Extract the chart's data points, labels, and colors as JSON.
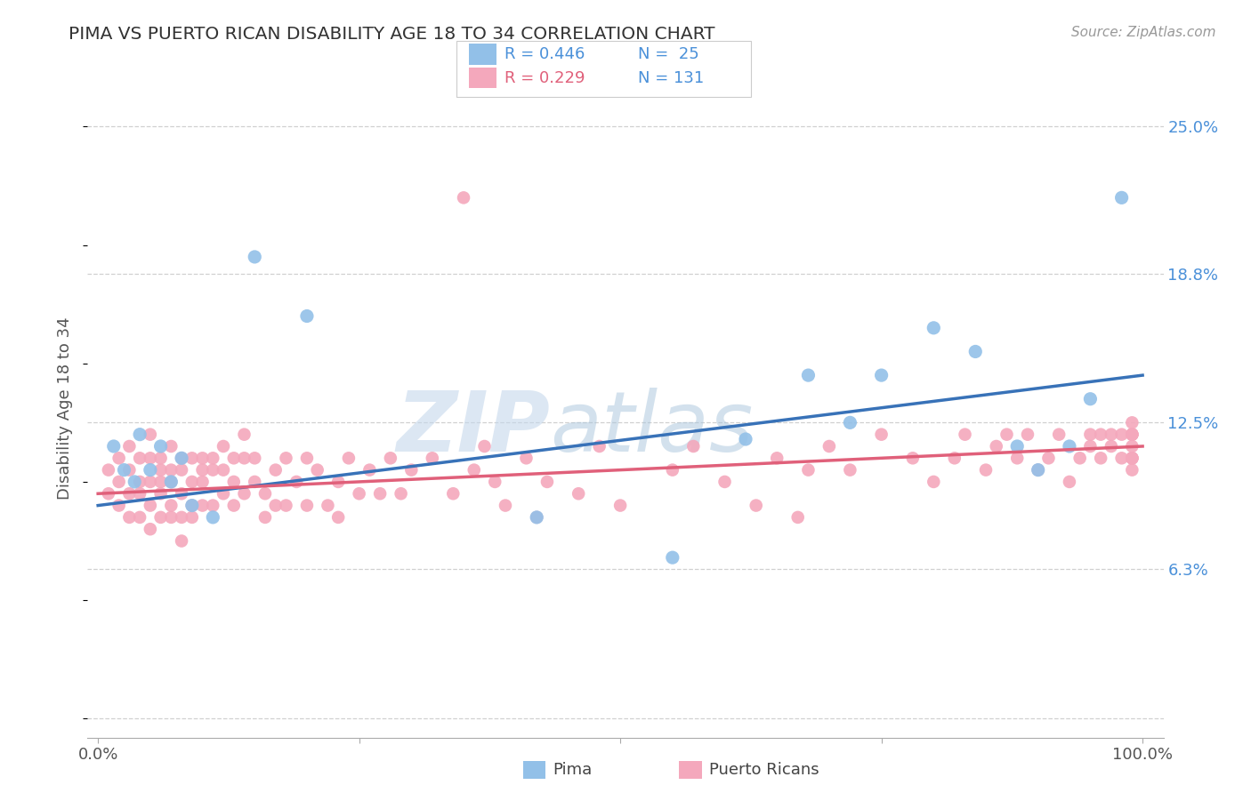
{
  "title": "PIMA VS PUERTO RICAN DISABILITY AGE 18 TO 34 CORRELATION CHART",
  "ylabel": "Disability Age 18 to 34",
  "source": "Source: ZipAtlas.com",
  "pima_R": "0.446",
  "pima_N": "25",
  "pr_R": "0.229",
  "pr_N": "131",
  "xlim": [
    0,
    100
  ],
  "yticks": [
    0.0,
    6.3,
    12.5,
    18.8,
    25.0
  ],
  "yticklabels": [
    "",
    "6.3%",
    "12.5%",
    "18.8%",
    "25.0%"
  ],
  "pima_color": "#92c0e8",
  "pima_line_color": "#3872b8",
  "pr_color": "#f4a8bc",
  "pr_line_color": "#e0607a",
  "pima_x": [
    1.5,
    2.5,
    3.5,
    4.0,
    5.0,
    6.0,
    7.0,
    8.0,
    9.0,
    11.0,
    15.0,
    20.0,
    42.0,
    55.0,
    62.0,
    68.0,
    72.0,
    75.0,
    80.0,
    84.0,
    88.0,
    90.0,
    93.0,
    95.0,
    98.0
  ],
  "pima_y": [
    11.5,
    10.5,
    10.0,
    12.0,
    10.5,
    11.5,
    10.0,
    11.0,
    9.0,
    8.5,
    19.5,
    17.0,
    8.5,
    6.8,
    11.8,
    14.5,
    12.5,
    14.5,
    16.5,
    15.5,
    11.5,
    10.5,
    11.5,
    13.5,
    22.0
  ],
  "pr_x": [
    1,
    1,
    2,
    2,
    2,
    3,
    3,
    3,
    3,
    4,
    4,
    4,
    4,
    5,
    5,
    5,
    5,
    5,
    6,
    6,
    6,
    6,
    6,
    7,
    7,
    7,
    7,
    7,
    8,
    8,
    8,
    8,
    8,
    9,
    9,
    9,
    9,
    10,
    10,
    10,
    10,
    11,
    11,
    11,
    12,
    12,
    12,
    13,
    13,
    13,
    14,
    14,
    14,
    15,
    15,
    16,
    16,
    17,
    17,
    18,
    18,
    19,
    20,
    20,
    21,
    22,
    23,
    23,
    24,
    25,
    26,
    27,
    28,
    29,
    30,
    32,
    34,
    35,
    36,
    37,
    38,
    39,
    41,
    42,
    43,
    46,
    48,
    50,
    55,
    57,
    60,
    63,
    65,
    67,
    68,
    70,
    72,
    75,
    78,
    80,
    82,
    83,
    85,
    86,
    87,
    88,
    89,
    90,
    91,
    92,
    93,
    94,
    95,
    95,
    96,
    96,
    97,
    97,
    98,
    98,
    99,
    99,
    99,
    99,
    99,
    99,
    99,
    99,
    99,
    99,
    99
  ],
  "pr_y": [
    9.5,
    10.5,
    9.0,
    10.0,
    11.0,
    8.5,
    9.5,
    10.5,
    11.5,
    8.5,
    9.5,
    10.0,
    11.0,
    8.0,
    9.0,
    10.0,
    11.0,
    12.0,
    8.5,
    9.5,
    10.0,
    10.5,
    11.0,
    8.5,
    9.0,
    10.0,
    10.5,
    11.5,
    7.5,
    8.5,
    9.5,
    10.5,
    11.0,
    8.5,
    9.0,
    10.0,
    11.0,
    9.0,
    10.0,
    10.5,
    11.0,
    9.0,
    10.5,
    11.0,
    9.5,
    10.5,
    11.5,
    9.0,
    10.0,
    11.0,
    9.5,
    11.0,
    12.0,
    10.0,
    11.0,
    8.5,
    9.5,
    9.0,
    10.5,
    9.0,
    11.0,
    10.0,
    9.0,
    11.0,
    10.5,
    9.0,
    8.5,
    10.0,
    11.0,
    9.5,
    10.5,
    9.5,
    11.0,
    9.5,
    10.5,
    11.0,
    9.5,
    22.0,
    10.5,
    11.5,
    10.0,
    9.0,
    11.0,
    8.5,
    10.0,
    9.5,
    11.5,
    9.0,
    10.5,
    11.5,
    10.0,
    9.0,
    11.0,
    8.5,
    10.5,
    11.5,
    10.5,
    12.0,
    11.0,
    10.0,
    11.0,
    12.0,
    10.5,
    11.5,
    12.0,
    11.0,
    12.0,
    10.5,
    11.0,
    12.0,
    10.0,
    11.0,
    12.0,
    11.5,
    12.0,
    11.0,
    12.0,
    11.5,
    12.0,
    11.0,
    12.5,
    11.0,
    12.0,
    10.5,
    11.0,
    12.0,
    11.0,
    12.0,
    11.5,
    11.0,
    12.0
  ]
}
